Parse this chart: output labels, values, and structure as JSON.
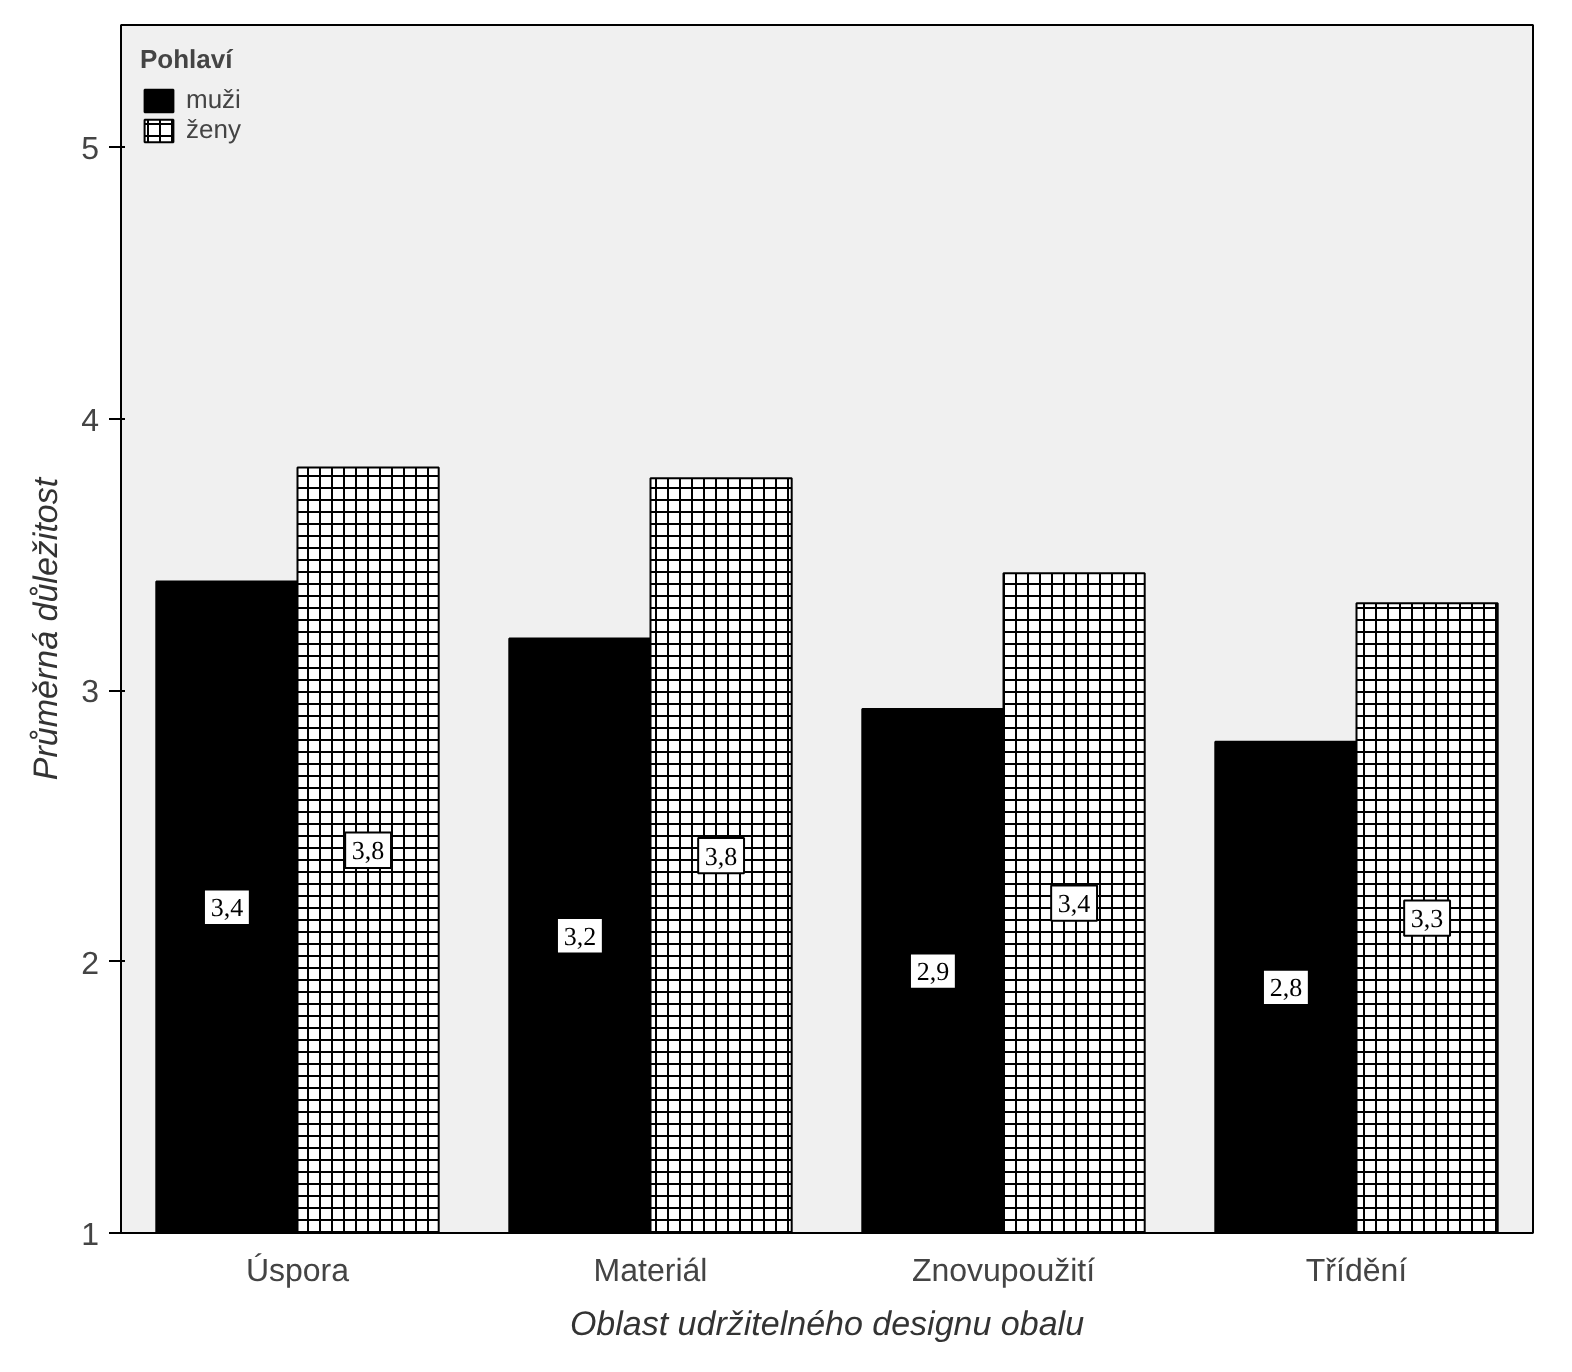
{
  "chart_data": {
    "type": "bar",
    "xlabel": "Oblast udržitelného designu obalu",
    "ylabel": "Průměrná důležitost",
    "legend_title": "Pohlaví",
    "categories": [
      "Úspora",
      "Materiál",
      "Znovupoužití",
      "Třídění"
    ],
    "series": [
      {
        "name": "muži",
        "color": "#000000",
        "values": [
          3.4,
          3.19,
          2.93,
          2.81
        ],
        "value_labels": [
          "3,4",
          "3,2",
          "2,9",
          "2,8"
        ]
      },
      {
        "name": "ženy",
        "color": "#ffffff",
        "values": [
          3.82,
          3.78,
          3.43,
          3.32
        ],
        "value_labels": [
          "3,8",
          "3,8",
          "3,4",
          "3,3"
        ]
      }
    ],
    "ylim": [
      1,
      5.45
    ],
    "yticks": [
      1,
      2,
      3,
      4,
      5
    ],
    "grid": false,
    "legend": "top left"
  }
}
